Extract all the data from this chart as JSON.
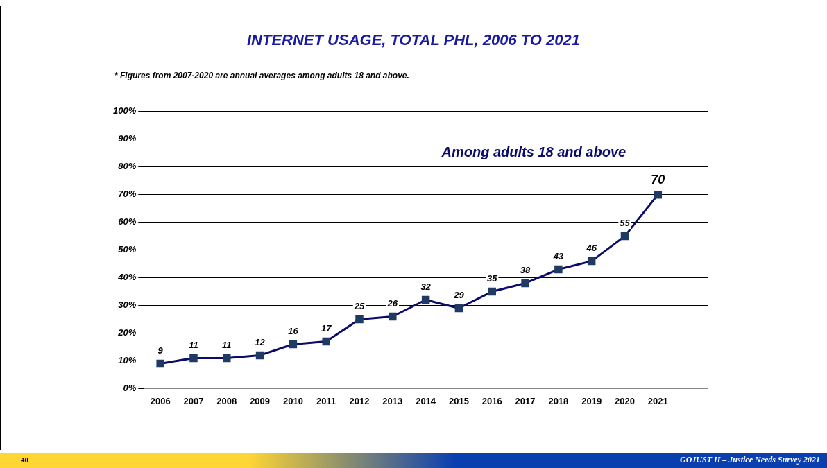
{
  "chart_data": {
    "type": "line",
    "title": "INTERNET USAGE, TOTAL PHL, 2006 TO 2021",
    "subtitle": "* Figures from 2007-2020 are annual averages among adults 18 and above.",
    "categories": [
      "2006",
      "2007",
      "2008",
      "2009",
      "2010",
      "2011",
      "2012",
      "2013",
      "2014",
      "2015",
      "2016",
      "2017",
      "2018",
      "2019",
      "2020",
      "2021",
      null
    ],
    "series": [
      {
        "name": "Among adults 18 and above",
        "color": "#0b0b6b",
        "values": [
          9,
          11,
          11,
          12,
          16,
          17,
          25,
          26,
          32,
          29,
          35,
          38,
          43,
          46,
          55,
          70,
          null
        ]
      }
    ],
    "ylim": [
      0,
      100
    ],
    "yticks": [
      {
        "value": 0,
        "label": "0%"
      },
      {
        "value": 10,
        "label": "10%"
      },
      {
        "value": 20,
        "label": "20%"
      },
      {
        "value": 30,
        "label": "30%"
      },
      {
        "value": 40,
        "label": "40%"
      },
      {
        "value": 50,
        "label": "50%"
      },
      {
        "value": 60,
        "label": "60%"
      },
      {
        "value": 70,
        "label": "70%"
      },
      {
        "value": 80,
        "label": "80%"
      },
      {
        "value": 90,
        "label": "90%"
      },
      {
        "value": 100,
        "label": "100%"
      }
    ],
    "grid": "y",
    "marker": "square",
    "line_style": "solid",
    "data_labels": true,
    "legend": false,
    "annotations": [
      "40",
      "GOJUST II – Justice Needs Survey 2021"
    ]
  }
}
